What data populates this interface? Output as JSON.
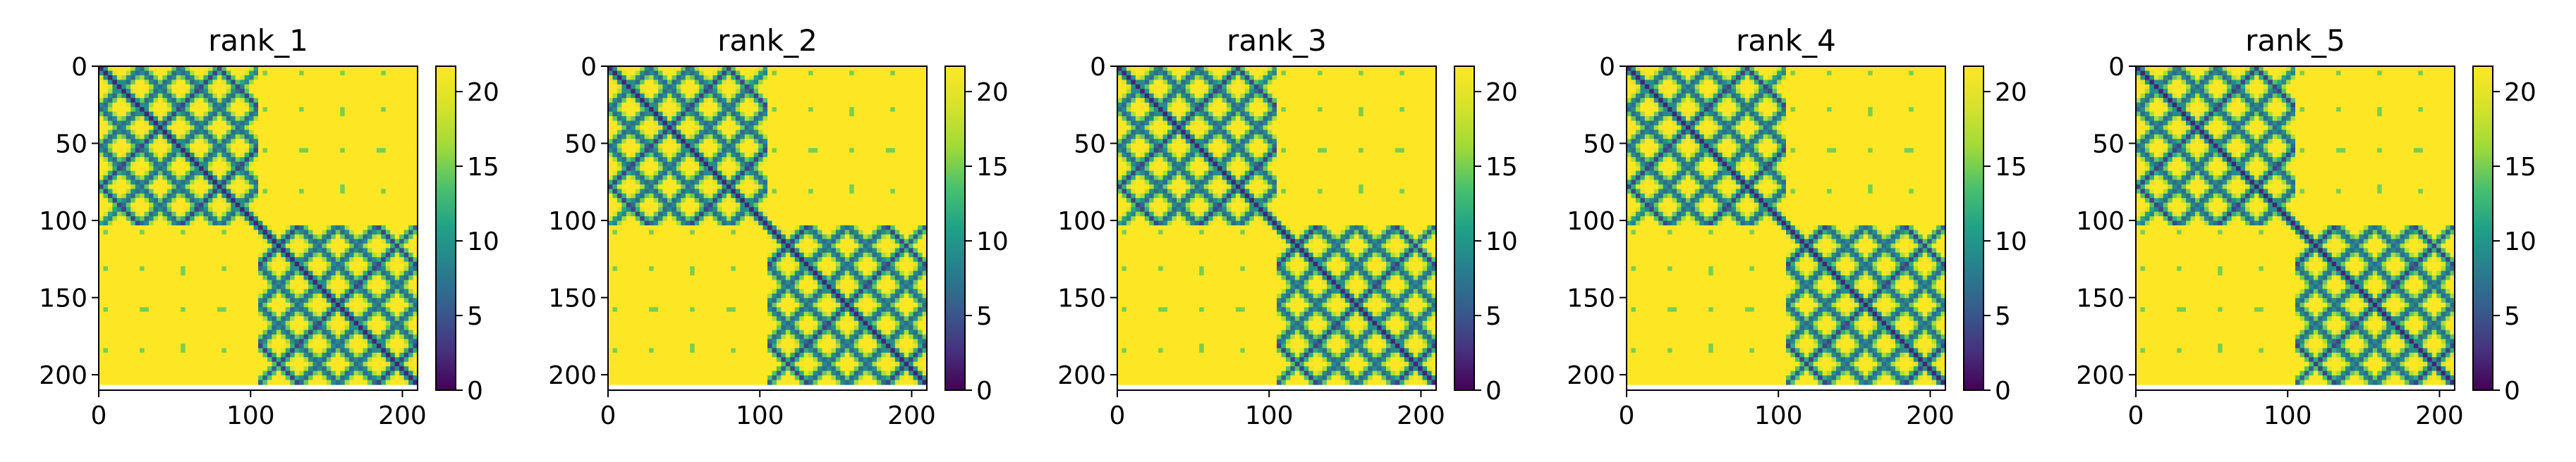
{
  "chart_data": [
    {
      "type": "heatmap",
      "title": "rank_1",
      "x_ticks": [
        0,
        100,
        200
      ],
      "y_ticks": [
        0,
        50,
        100,
        150,
        200
      ],
      "xlim": [
        0,
        210
      ],
      "ylim": [
        210,
        0
      ],
      "colorbar": {
        "ticks": [
          0,
          5,
          10,
          15,
          20
        ],
        "range": [
          0,
          21.7
        ]
      }
    },
    {
      "type": "heatmap",
      "title": "rank_2",
      "x_ticks": [
        0,
        100,
        200
      ],
      "y_ticks": [
        0,
        50,
        100,
        150,
        200
      ],
      "xlim": [
        0,
        210
      ],
      "ylim": [
        210,
        0
      ],
      "colorbar": {
        "ticks": [
          0,
          5,
          10,
          15,
          20
        ],
        "range": [
          0,
          21.7
        ]
      }
    },
    {
      "type": "heatmap",
      "title": "rank_3",
      "x_ticks": [
        0,
        100,
        200
      ],
      "y_ticks": [
        0,
        50,
        100,
        150,
        200
      ],
      "xlim": [
        0,
        210
      ],
      "ylim": [
        210,
        0
      ],
      "colorbar": {
        "ticks": [
          0,
          5,
          10,
          15,
          20
        ],
        "range": [
          0,
          21.7
        ]
      }
    },
    {
      "type": "heatmap",
      "title": "rank_4",
      "x_ticks": [
        0,
        100,
        200
      ],
      "y_ticks": [
        0,
        50,
        100,
        150,
        200
      ],
      "xlim": [
        0,
        210
      ],
      "ylim": [
        210,
        0
      ],
      "colorbar": {
        "ticks": [
          0,
          5,
          10,
          15,
          20
        ],
        "range": [
          0,
          21.7
        ]
      }
    },
    {
      "type": "heatmap",
      "title": "rank_5",
      "x_ticks": [
        0,
        100,
        200
      ],
      "y_ticks": [
        0,
        50,
        100,
        150,
        200
      ],
      "xlim": [
        0,
        210
      ],
      "ylim": [
        210,
        0
      ],
      "colorbar": {
        "ticks": [
          0,
          5,
          10,
          15,
          20
        ],
        "range": [
          0,
          21.7
        ]
      }
    }
  ],
  "colors": {
    "colormap": "viridis",
    "low": "#440154",
    "mid": "#21918c",
    "high": "#fde725"
  }
}
